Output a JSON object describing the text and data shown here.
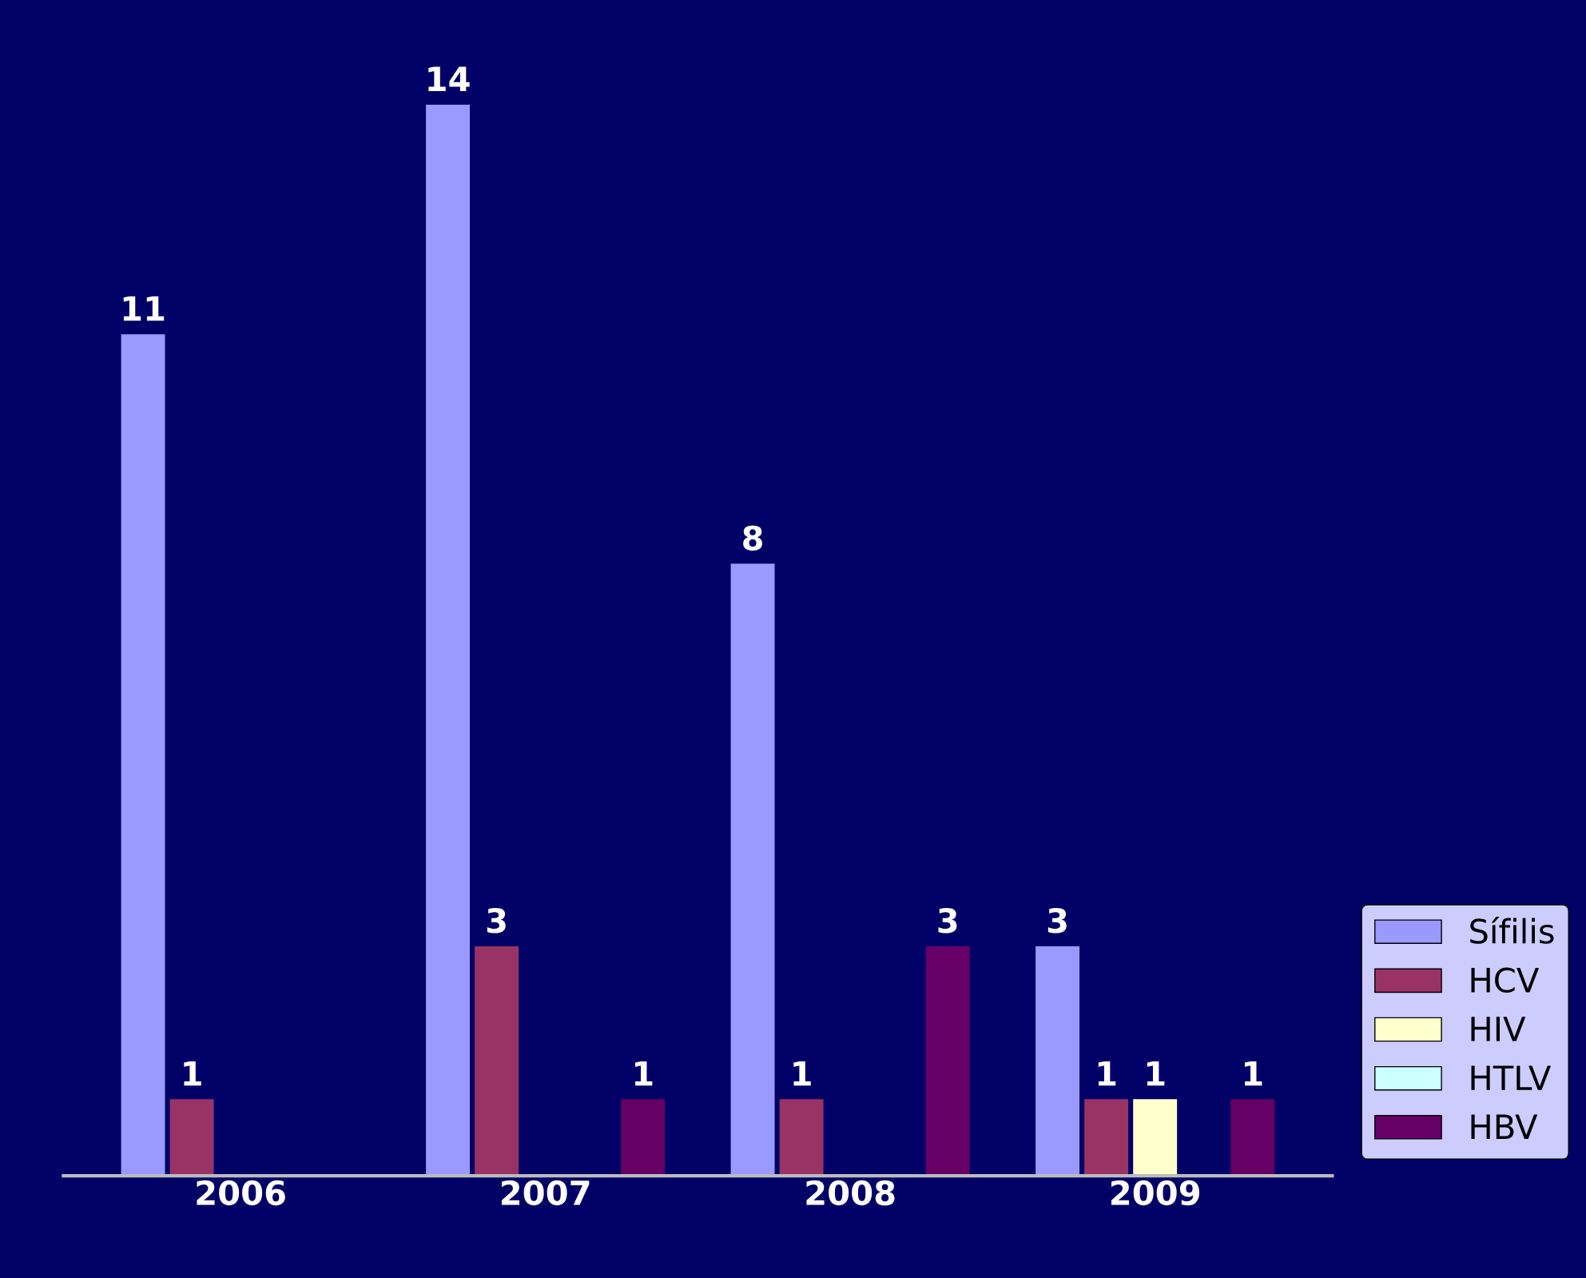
{
  "chart_data": {
    "type": "bar",
    "categories": [
      "2006",
      "2007",
      "2008",
      "2009"
    ],
    "series": [
      {
        "name": "Sífilis",
        "color": "#9999ff",
        "values": [
          11,
          14,
          8,
          3
        ]
      },
      {
        "name": "HCV",
        "color": "#993366",
        "values": [
          1,
          3,
          1,
          1
        ]
      },
      {
        "name": "HIV",
        "color": "#ffffcc",
        "values": [
          null,
          null,
          null,
          1
        ]
      },
      {
        "name": "HTLV",
        "color": "#ccffff",
        "values": [
          null,
          null,
          null,
          null
        ]
      },
      {
        "name": "HBV",
        "color": "#660066",
        "values": [
          null,
          1,
          3,
          1
        ]
      }
    ],
    "data_labels": true,
    "legend": "bottom right",
    "grid": false,
    "tick_labels": "x"
  }
}
